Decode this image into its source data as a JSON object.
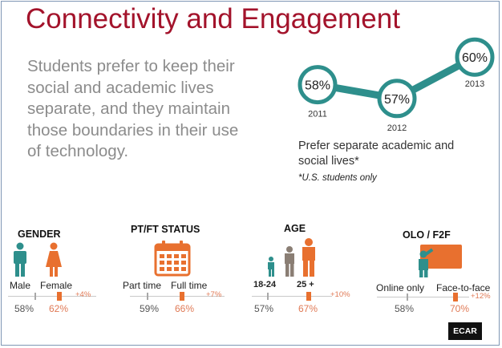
{
  "title": "Connectivity and Engagement",
  "subtitle": "Students prefer to keep their social and academic lives separate, and they maintain those boundaries in their use of technology.",
  "logo": "ECAR",
  "colors": {
    "title": "#a3132b",
    "teal": "#2e8f8c",
    "orange": "#e07a56",
    "grey": "#8c8c8c"
  },
  "chart_data": [
    {
      "type": "line",
      "x": [
        "2011",
        "2012",
        "2013"
      ],
      "series": [
        {
          "values": [
            58,
            57,
            60
          ]
        }
      ],
      "point_labels": [
        "58%",
        "57%",
        "60%"
      ],
      "caption": "Prefer separate academic and social lives*",
      "note": "*U.S. students only"
    },
    {
      "type": "bar",
      "title": "GENDER",
      "categories": [
        "Male",
        "Female"
      ],
      "values": [
        58,
        62
      ],
      "value_labels": [
        "58%",
        "62%"
      ],
      "difference": "+4%",
      "icons": [
        "male-person-icon",
        "female-person-icon"
      ]
    },
    {
      "type": "bar",
      "title": "PT/FT STATUS",
      "categories": [
        "Part time",
        "Full time"
      ],
      "values": [
        59,
        66
      ],
      "value_labels": [
        "59%",
        "66%"
      ],
      "difference": "+7%",
      "icons": [
        "calendar-icon"
      ]
    },
    {
      "type": "bar",
      "title": "AGE",
      "categories": [
        "18-24",
        "25 +"
      ],
      "values": [
        57,
        67
      ],
      "value_labels": [
        "57%",
        "67%"
      ],
      "difference": "+10%",
      "icons": [
        "age-group-icon"
      ]
    },
    {
      "type": "bar",
      "title": "OLO / F2F",
      "categories": [
        "Online only",
        "Face-to-face"
      ],
      "values": [
        58,
        70
      ],
      "value_labels": [
        "58%",
        "70%"
      ],
      "difference": "+12%",
      "icons": [
        "teacher-board-icon"
      ]
    }
  ]
}
